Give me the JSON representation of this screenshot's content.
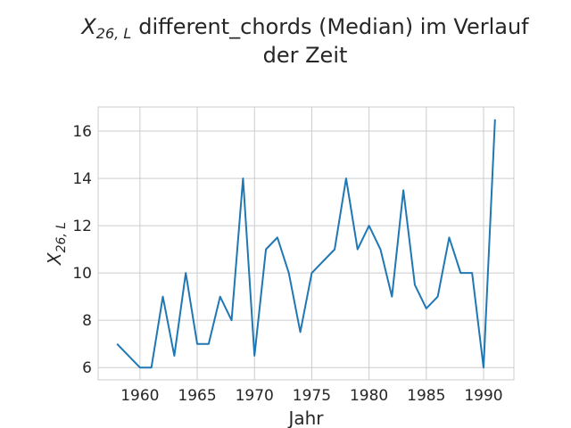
{
  "chart_data": {
    "type": "line",
    "title_line1": "different_chords (Median) im Verlauf",
    "title_line2": "der Zeit",
    "title_symbol": "X",
    "title_symbol_sub": "26, L",
    "xlabel": "Jahr",
    "ylabel_symbol": "X",
    "ylabel_sub": "26, L",
    "xlim": [
      1956.35,
      1992.65
    ],
    "ylim": [
      5.48,
      17.02
    ],
    "xticks": [
      1960,
      1965,
      1970,
      1975,
      1980,
      1985,
      1990
    ],
    "yticks": [
      6,
      8,
      10,
      12,
      14,
      16
    ],
    "grid": true,
    "line_color": "#1f77b4",
    "x": [
      1958,
      1960,
      1961,
      1962,
      1963,
      1964,
      1965,
      1966,
      1967,
      1968,
      1969,
      1970,
      1971,
      1972,
      1973,
      1974,
      1975,
      1977,
      1978,
      1979,
      1980,
      1981,
      1982,
      1983,
      1984,
      1985,
      1986,
      1987,
      1988,
      1989,
      1990,
      1991
    ],
    "y": [
      7,
      6,
      6,
      9,
      6.5,
      10,
      7,
      7,
      9,
      8,
      14,
      6.5,
      11,
      11.5,
      10,
      7.5,
      10,
      11,
      14,
      11,
      12,
      11,
      9,
      13.5,
      9.5,
      8.5,
      9,
      11.5,
      10,
      10,
      6,
      16.5
    ]
  }
}
